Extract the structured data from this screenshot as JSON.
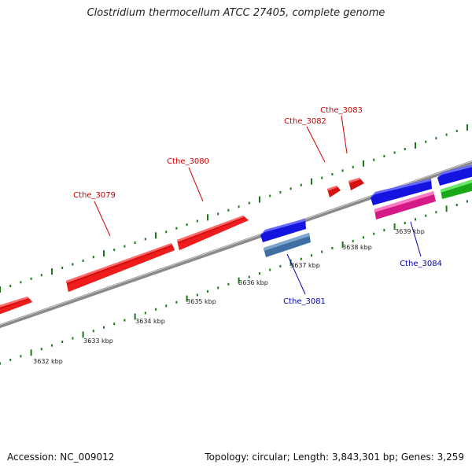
{
  "title": "Clostridium thermocellum ATCC 27405, complete genome",
  "accession": "Accession: NC_009012",
  "summary": "Topology: circular; Length: 3,843,301 bp; Genes: 3,259",
  "colors": {
    "backbone": "#8a8a8a",
    "tick": "#1a7a1a",
    "forward_label": "#cc0000",
    "reverse_label": "#0000aa",
    "red": "#ee1c1c",
    "blue": "#1414e0",
    "steelblue": "#4a7fb5",
    "magenta": "#ee2a9a",
    "green": "#22c822"
  },
  "scale_labels": [
    "3632 kbp",
    "3633 kbp",
    "3634 kbp",
    "3635 kbp",
    "3636 kbp",
    "3637 kbp",
    "3638 kbp",
    "3639 kbp"
  ],
  "gene_labels": [
    {
      "text": "Cthe_3079",
      "strand": "forward"
    },
    {
      "text": "Cthe_3080",
      "strand": "forward"
    },
    {
      "text": "Cthe_3082",
      "strand": "forward"
    },
    {
      "text": "Cthe_3083",
      "strand": "forward"
    },
    {
      "text": "Cthe_3081",
      "strand": "reverse"
    },
    {
      "text": "Cthe_3084",
      "strand": "reverse"
    }
  ]
}
